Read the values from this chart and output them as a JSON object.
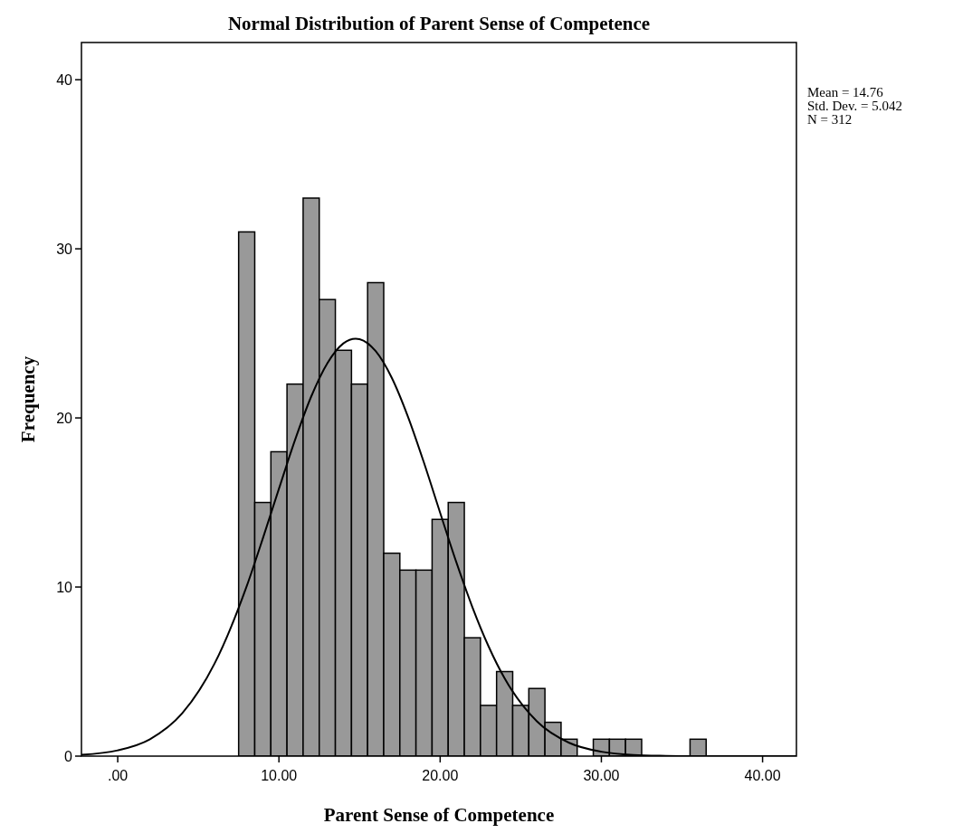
{
  "chart_data": {
    "type": "histogram",
    "title": "Normal Distribution of Parent Sense of Competence",
    "xlabel": "Parent Sense of Competence",
    "ylabel": "Frequency",
    "annotations": [
      "Mean = 14.76",
      "Std. Dev. = 5.042",
      "N = 312"
    ],
    "xlim": [
      -2.25,
      42.1
    ],
    "xticks": [
      {
        "value": 0,
        "label": ".00"
      },
      {
        "value": 10,
        "label": "10.00"
      },
      {
        "value": 20,
        "label": "20.00"
      },
      {
        "value": 30,
        "label": "30.00"
      },
      {
        "value": 40,
        "label": "40.00"
      }
    ],
    "ylim": [
      0,
      42.2
    ],
    "yticks": [
      0,
      10,
      20,
      30,
      40
    ],
    "grid": false,
    "series": [
      {
        "type": "histogram",
        "color": "#999999",
        "bins": [
          7.5,
          8.5,
          9.5,
          10.5,
          11.5,
          12.5,
          13.5,
          14.5,
          15.5,
          16.5,
          17.5,
          18.5,
          19.5,
          20.5,
          21.5,
          22.5,
          23.5,
          24.5,
          25.5,
          26.5,
          27.5,
          28.5,
          29.5,
          30.5,
          31.5,
          32.5,
          33.5,
          34.5,
          35.5,
          36.5
        ],
        "values": [
          31,
          15,
          18,
          22,
          33,
          27,
          24,
          22,
          28,
          12,
          11,
          11,
          14,
          15,
          7,
          3,
          5,
          3,
          4,
          2,
          1,
          0,
          1,
          1,
          1,
          0,
          0,
          0,
          1
        ]
      },
      {
        "type": "line",
        "color": "#000000",
        "x": [
          -2.25,
          0,
          2,
          4,
          6,
          8,
          9,
          10,
          11,
          12,
          13,
          14,
          14.76,
          15,
          16,
          17,
          18,
          19,
          20,
          21,
          22,
          23,
          24,
          26,
          28,
          30,
          32,
          34,
          36,
          38,
          40,
          42.1
        ],
        "values": [
          0.08,
          0.34,
          1.0,
          2.53,
          5.46,
          10.05,
          12.87,
          15.81,
          18.7,
          21.26,
          23.23,
          24.41,
          24.69,
          24.66,
          23.95,
          22.37,
          20.08,
          17.34,
          14.39,
          11.48,
          8.81,
          6.5,
          4.6,
          2.06,
          0.79,
          0.26,
          0.07,
          0.02,
          0,
          0,
          0,
          0
        ]
      }
    ]
  }
}
